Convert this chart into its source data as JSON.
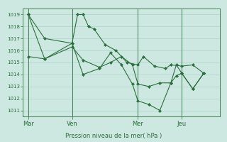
{
  "background_color": "#cce8e0",
  "grid_color": "#b0d8cf",
  "line_color": "#2d6e3e",
  "marker_color": "#2d6e3e",
  "title": "Pression niveau de la mer( hPa )",
  "ylim": [
    1010.5,
    1019.5
  ],
  "yticks": [
    1011,
    1012,
    1013,
    1014,
    1015,
    1016,
    1017,
    1018,
    1019
  ],
  "xtick_labels": [
    "Mar",
    "Ven",
    "Mer",
    "Jeu"
  ],
  "xtick_positions": [
    1,
    9,
    21,
    29
  ],
  "vlines": [
    1,
    9,
    21,
    29
  ],
  "xlim": [
    0,
    36
  ],
  "series1": {
    "x": [
      1,
      4,
      9,
      10,
      11,
      12,
      13,
      15,
      17,
      19,
      21,
      22,
      24,
      26,
      27,
      29,
      31,
      33
    ],
    "y": [
      1019,
      1017,
      1016.6,
      1019,
      1019,
      1018,
      1017.8,
      1016.5,
      1016.0,
      1015.0,
      1014.8,
      1015.5,
      1014.7,
      1014.5,
      1014.8,
      1014.7,
      1014.8,
      1014.1
    ]
  },
  "series2": {
    "x": [
      1,
      4,
      9,
      11,
      14,
      16,
      18,
      20,
      21,
      23,
      25,
      27,
      28,
      29,
      31,
      33
    ],
    "y": [
      1019,
      1015.3,
      1016.6,
      1014,
      1014.5,
      1015.8,
      1014.8,
      1013.2,
      1011.8,
      1011.5,
      1011.0,
      1013.3,
      1014.8,
      1014.1,
      1012.8,
      1014.1
    ]
  },
  "series3": {
    "x": [
      1,
      4,
      9,
      11,
      14,
      16,
      18,
      20,
      21,
      23,
      25,
      27,
      28,
      29,
      31,
      33
    ],
    "y": [
      1015.5,
      1015.3,
      1016.3,
      1015.2,
      1014.6,
      1015.0,
      1015.5,
      1014.8,
      1013.2,
      1013.0,
      1013.3,
      1013.3,
      1013.9,
      1014.1,
      1012.8,
      1014.1
    ]
  },
  "ylabel_fontsize": 5,
  "xlabel_fontsize": 6,
  "title_fontsize": 6,
  "line_width": 0.8,
  "marker_size": 2.2
}
